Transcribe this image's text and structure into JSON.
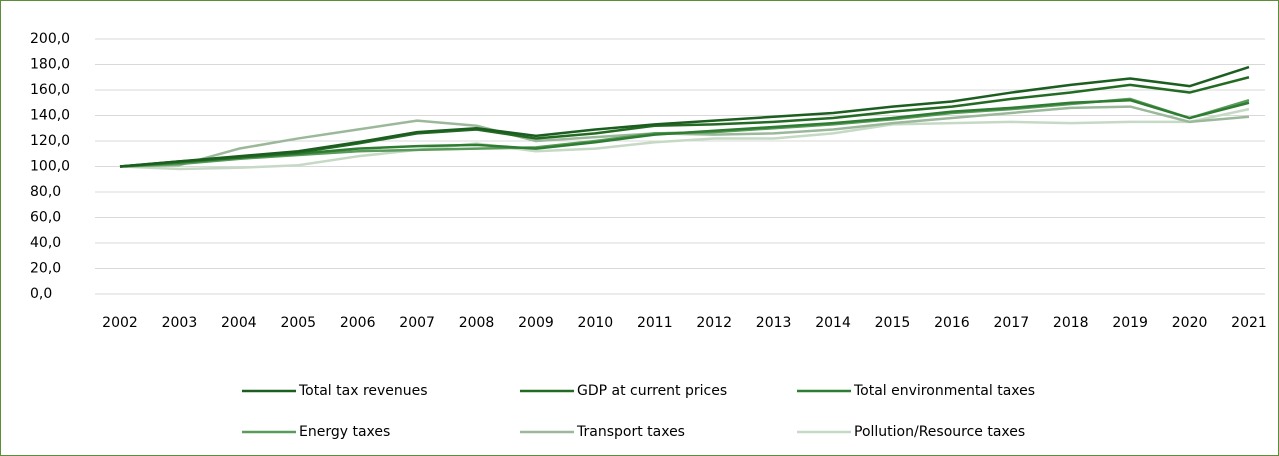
{
  "chart_data": {
    "type": "line",
    "categories": [
      "2002",
      "2003",
      "2004",
      "2005",
      "2006",
      "2007",
      "2008",
      "2009",
      "2010",
      "2011",
      "2012",
      "2013",
      "2014",
      "2015",
      "2016",
      "2017",
      "2018",
      "2019",
      "2020",
      "2021"
    ],
    "series": [
      {
        "name": "Total tax revenues",
        "color": "#1b5e20",
        "values": [
          100,
          104,
          108,
          112,
          119,
          127,
          130,
          124,
          129,
          133,
          136,
          139,
          142,
          147,
          151,
          158,
          164,
          169,
          163,
          178
        ]
      },
      {
        "name": "GDP at current prices",
        "color": "#236b23",
        "values": [
          100,
          104,
          107,
          111,
          118,
          126,
          129,
          122,
          126,
          132,
          133,
          135,
          138,
          143,
          147,
          153,
          158,
          164,
          158,
          170
        ]
      },
      {
        "name": "Total environmental taxes",
        "color": "#2e7d32",
        "values": [
          100,
          103,
          107,
          110,
          114,
          116,
          117,
          114,
          119,
          125,
          128,
          131,
          134,
          138,
          143,
          146,
          150,
          152,
          138,
          150
        ]
      },
      {
        "name": "Energy taxes",
        "color": "#5a9a5a",
        "values": [
          100,
          102,
          106,
          109,
          112,
          113,
          114,
          115,
          120,
          126,
          127,
          130,
          133,
          137,
          142,
          145,
          149,
          153,
          138,
          152
        ]
      },
      {
        "name": "Transport taxes",
        "color": "#9bb89b",
        "values": [
          100,
          101,
          114,
          122,
          129,
          136,
          132,
          120,
          123,
          126,
          125,
          126,
          129,
          134,
          138,
          142,
          146,
          147,
          135,
          139
        ]
      },
      {
        "name": "Pollution/Resource taxes",
        "color": "#c5d9c5",
        "values": [
          100,
          98,
          99,
          101,
          108,
          113,
          118,
          112,
          114,
          119,
          122,
          122,
          126,
          133,
          134,
          135,
          134,
          135,
          135,
          145
        ]
      }
    ],
    "ylim": [
      0,
      200
    ],
    "yticks": [
      {
        "value": 0,
        "label": "0,0"
      },
      {
        "value": 20,
        "label": "20,0"
      },
      {
        "value": 40,
        "label": "40,0"
      },
      {
        "value": 60,
        "label": "60,0"
      },
      {
        "value": 80,
        "label": "80,0"
      },
      {
        "value": 100,
        "label": "100,0"
      },
      {
        "value": 120,
        "label": "120,0"
      },
      {
        "value": 140,
        "label": "140,0"
      },
      {
        "value": 160,
        "label": "160,0"
      },
      {
        "value": 180,
        "label": "180,0"
      },
      {
        "value": 200,
        "label": "200,0"
      }
    ],
    "grid": true,
    "legend": "bottom"
  }
}
